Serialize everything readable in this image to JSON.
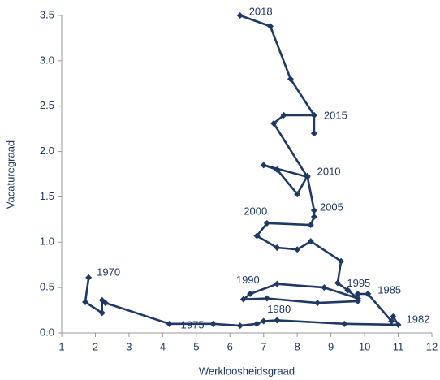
{
  "chart_data": {
    "type": "line",
    "x_label": "Werkloosheidsgraad",
    "y_label": "Vacaturegraad",
    "color": "#1f3864",
    "x": [
      1.8,
      1.7,
      2.2,
      2.2,
      2.3,
      4.2,
      5.5,
      6.3,
      6.8,
      7.0,
      7.4,
      9.4,
      11.0,
      10.85,
      10.8,
      10.1,
      9.8,
      9.8,
      8.6,
      7.1,
      6.4,
      6.6,
      7.4,
      8.8,
      9.8,
      9.5,
      9.2,
      9.3,
      8.4,
      8.0,
      7.4,
      6.8,
      7.1,
      8.4,
      8.5,
      8.5,
      8.3,
      8.0,
      7.4,
      7.0,
      8.3,
      7.3,
      7.6,
      8.5,
      8.5,
      8.5,
      7.8,
      7.2,
      6.3
    ],
    "values": [
      0.61,
      0.34,
      0.22,
      0.36,
      0.33,
      0.1,
      0.1,
      0.08,
      0.1,
      0.13,
      0.14,
      0.1,
      0.09,
      0.18,
      0.13,
      0.43,
      0.43,
      0.35,
      0.33,
      0.38,
      0.37,
      0.43,
      0.54,
      0.5,
      0.38,
      0.47,
      0.55,
      0.79,
      1.01,
      0.92,
      0.94,
      1.07,
      1.21,
      1.19,
      1.28,
      1.35,
      1.73,
      1.53,
      1.8,
      1.85,
      1.72,
      2.31,
      2.4,
      2.4,
      2.2,
      2.4,
      2.8,
      3.38,
      3.5
    ],
    "point_labels": [
      "1970",
      null,
      null,
      null,
      null,
      "1975",
      null,
      null,
      null,
      null,
      "1980",
      null,
      "1982",
      null,
      null,
      "1985",
      null,
      null,
      null,
      null,
      "1990",
      null,
      null,
      null,
      null,
      "1995",
      null,
      null,
      null,
      null,
      "2000",
      null,
      null,
      null,
      null,
      "2005",
      null,
      null,
      null,
      null,
      "2010",
      null,
      null,
      null,
      null,
      "2015",
      null,
      null,
      "2018"
    ],
    "xlim": [
      1,
      12
    ],
    "xticks": [
      1,
      2,
      3,
      4,
      5,
      6,
      7,
      8,
      9,
      10,
      11,
      12
    ],
    "ylim": [
      0,
      3.5
    ],
    "yticks": [
      {
        "value": 0,
        "label": "0.0"
      },
      0.5,
      {
        "value": 1,
        "label": "1.0"
      },
      1.5,
      {
        "value": 2,
        "label": "2.0"
      },
      2.5,
      {
        "value": 3,
        "label": "3.0"
      },
      3.5
    ],
    "grid": false
  }
}
